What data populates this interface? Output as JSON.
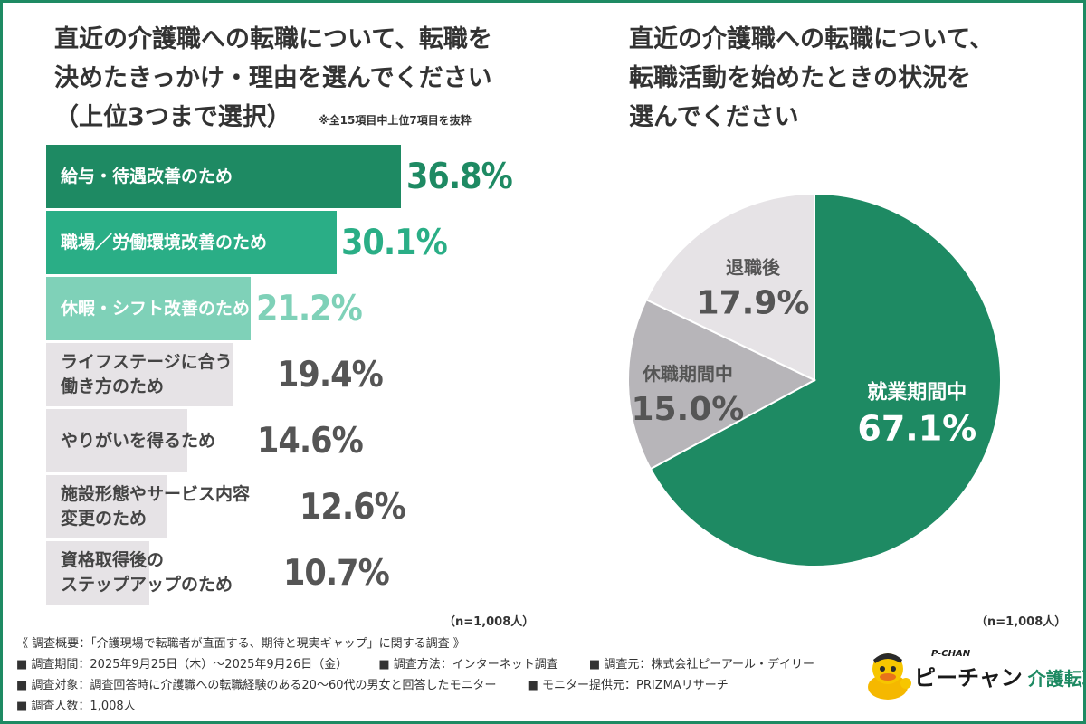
{
  "left_title": {
    "line1": "直近の介護職への転職について、転職を",
    "line2": "決めたきっかけ・理由を選んでください",
    "line3": "（上位3つまで選択）",
    "note": "※全15項目中上位7項目を抜粋",
    "n": "（n=1,008人）"
  },
  "right_title": {
    "line1": "直近の介護職への転職について、",
    "line2": "転職活動を始めたときの状況を",
    "line3": "選んでください",
    "n": "（n=1,008人）"
  },
  "chart_data": [
    {
      "type": "bar",
      "orientation": "horizontal",
      "title": "直近の介護職への転職について、転職を決めたきっかけ・理由を選んでください（上位3つまで選択）",
      "categories": [
        "給与・待遇改善のため",
        "職場／労働環境改善のため",
        "休暇・シフト改善のため",
        "ライフステージに合う\n働き方のため",
        "やりがいを得るため",
        "施設形態やサービス内容\n変更のため",
        "資格取得後の\nステップアップのため"
      ],
      "values": [
        36.8,
        30.1,
        21.2,
        19.4,
        14.6,
        12.6,
        10.7
      ],
      "value_labels": [
        "36.8%",
        "30.1%",
        "21.2%",
        "19.4%",
        "14.6%",
        "12.6%",
        "10.7%"
      ],
      "colors": [
        "#1e8a63",
        "#2aae86",
        "#7fd1b8",
        "#e6e3e6",
        "#e6e3e6",
        "#e6e3e6",
        "#e6e3e6"
      ],
      "value_colors": [
        "#1e8a63",
        "#2aae86",
        "#7fd1b8",
        "#555555",
        "#555555",
        "#555555",
        "#555555"
      ],
      "label_colors": [
        "#ffffff",
        "#ffffff",
        "#ffffff",
        "#444444",
        "#444444",
        "#444444",
        "#444444"
      ]
    },
    {
      "type": "pie",
      "title": "直近の介護職への転職について、転職活動を始めたときの状況を選んでください",
      "labels": [
        "就業期間中",
        "休職期間中",
        "退職後"
      ],
      "values": [
        67.1,
        15.0,
        17.9
      ],
      "value_labels": [
        "67.1%",
        "15.0%",
        "17.9%"
      ],
      "colors": [
        "#1e8a63",
        "#b7b5b9",
        "#e6e3e6"
      ],
      "text_colors": [
        "#ffffff",
        "#555555",
        "#555555"
      ]
    }
  ],
  "footer": {
    "summary": "《 調査概要：「介護現場で転職者が直面する、期待と現実ギャップ」に関する調査 》",
    "period": "■ 調査期間：2025年9月25日（木）～2025年9月26日（金）",
    "method": "■ 調査方法：インターネット調査",
    "source": "■ 調査元：株式会社ピーアール・デイリー",
    "target": "■ 調査対象：調査回答時に介護職への転職経験のある20～60代の男女と回答したモニター",
    "provider": "■ モニター提供元：PRIZMAリサーチ",
    "count": "■ 調査人数：1,008人"
  },
  "logo": {
    "small": "P-CHAN",
    "main": "ピーチャン",
    "sub": "介護転職"
  }
}
